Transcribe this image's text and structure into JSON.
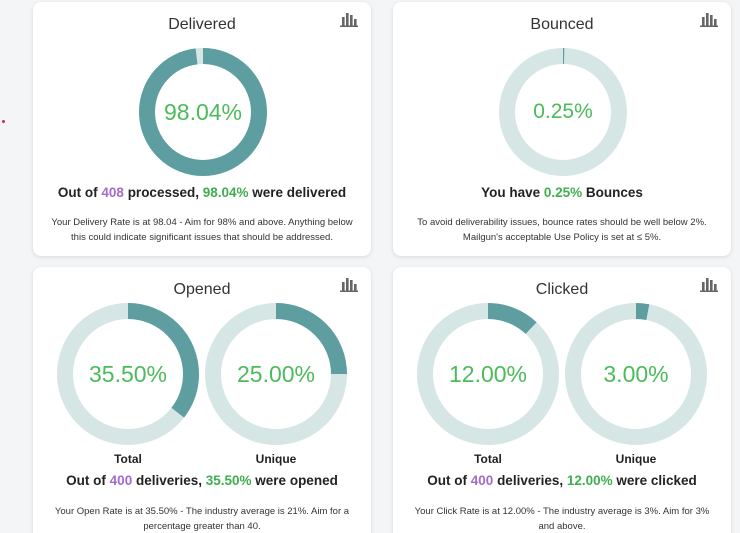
{
  "colors": {
    "ring_fill": "#5f9ea0",
    "ring_track": "#d5e6e5",
    "percent_text": "#4cbb5a",
    "number_purple": "#a36bc7",
    "number_green": "#3fae4f"
  },
  "delivered": {
    "title": "Delivered",
    "percent_label": "98.04%",
    "ratio": 0.9804,
    "summary": {
      "prefix": "Out of ",
      "count": "408",
      "mid": " processed, ",
      "rate": "98.04%",
      "suffix": " were delivered"
    },
    "desc_line1": "Your Delivery Rate is at 98.04 - Aim for 98% and above. Anything below",
    "desc_line2": "this could indicate significant issues that should be addressed."
  },
  "bounced": {
    "title": "Bounced",
    "percent_label": "0.25%",
    "ratio": 0.0025,
    "summary": {
      "prefix": "You have ",
      "rate": "0.25%",
      "suffix": " Bounces"
    },
    "desc_line1": "To avoid deliverability issues, bounce rates should be well below 2%.",
    "desc_line2": "Mailgun's acceptable Use Policy is set at ≤ 5%."
  },
  "opened": {
    "title": "Opened",
    "total_label": "35.50%",
    "total_ratio": 0.355,
    "total_caption": "Total",
    "unique_label": "25.00%",
    "unique_ratio": 0.25,
    "unique_caption": "Unique",
    "summary": {
      "prefix": "Out of ",
      "count": "400",
      "mid": " deliveries, ",
      "rate": "35.50%",
      "suffix": " were opened"
    },
    "desc_line1": "Your Open Rate is at 35.50% - The industry average is 21%. Aim for a",
    "desc_line2": "percentage greater than 40."
  },
  "clicked": {
    "title": "Clicked",
    "total_label": "12.00%",
    "total_ratio": 0.12,
    "total_caption": "Total",
    "unique_label": "3.00%",
    "unique_ratio": 0.03,
    "unique_caption": "Unique",
    "summary": {
      "prefix": "Out of ",
      "count": "400",
      "mid": " deliveries, ",
      "rate": "12.00%",
      "suffix": " were clicked"
    },
    "desc_line1": "Your Click Rate is at 12.00% - The industry average is 3%. Aim for 3%",
    "desc_line2": "and above."
  },
  "icons": {
    "chart_toggle": "bar-chart-icon"
  }
}
